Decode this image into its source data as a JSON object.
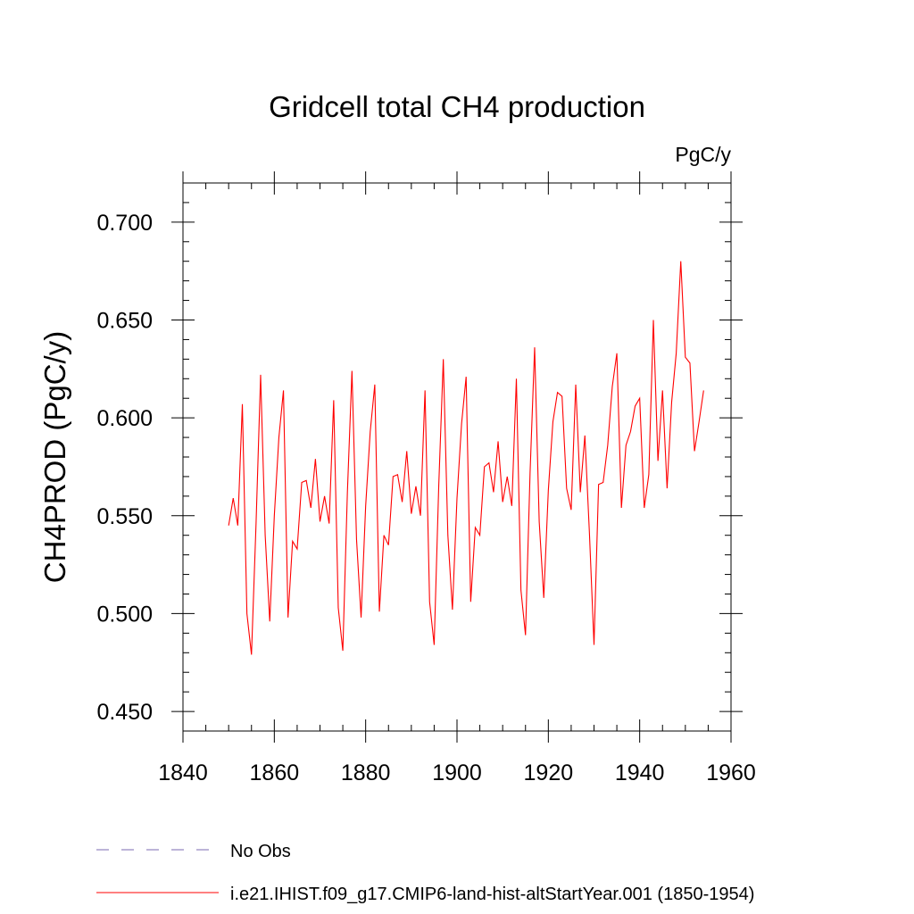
{
  "chart_data": {
    "type": "line",
    "title": "Gridcell total CH4 production",
    "units_label": "PgC/y",
    "ylabel": "CH4PROD  (PgC/y)",
    "xlabel": "",
    "xlim": [
      1840,
      1960
    ],
    "ylim": [
      0.44,
      0.72
    ],
    "x_ticks": [
      1840,
      1860,
      1880,
      1900,
      1920,
      1940,
      1960
    ],
    "x_tick_labels": [
      "1840",
      "1860",
      "1880",
      "1900",
      "1920",
      "1940",
      "1960"
    ],
    "y_ticks": [
      0.45,
      0.5,
      0.55,
      0.6,
      0.65,
      0.7
    ],
    "y_tick_labels": [
      "0.450",
      "0.500",
      "0.550",
      "0.600",
      "0.650",
      "0.700"
    ],
    "grid": false,
    "legend_position": "bottom-left",
    "series": [
      {
        "name": "i.e21.IHIST.f09_g17.CMIP6-land-hist-altStartYear.001 (1850-1954)",
        "color": "#ff0000",
        "x": [
          1850,
          1851,
          1852,
          1853,
          1854,
          1855,
          1856,
          1857,
          1858,
          1859,
          1860,
          1861,
          1862,
          1863,
          1864,
          1865,
          1866,
          1867,
          1868,
          1869,
          1870,
          1871,
          1872,
          1873,
          1874,
          1875,
          1876,
          1877,
          1878,
          1879,
          1880,
          1881,
          1882,
          1883,
          1884,
          1885,
          1886,
          1887,
          1888,
          1889,
          1890,
          1891,
          1892,
          1893,
          1894,
          1895,
          1896,
          1897,
          1898,
          1899,
          1900,
          1901,
          1902,
          1903,
          1904,
          1905,
          1906,
          1907,
          1908,
          1909,
          1910,
          1911,
          1912,
          1913,
          1914,
          1915,
          1916,
          1917,
          1918,
          1919,
          1920,
          1921,
          1922,
          1923,
          1924,
          1925,
          1926,
          1927,
          1928,
          1929,
          1930,
          1931,
          1932,
          1933,
          1934,
          1935,
          1936,
          1937,
          1938,
          1939,
          1940,
          1941,
          1942,
          1943,
          1944,
          1945,
          1946,
          1947,
          1948,
          1949,
          1950,
          1951,
          1952,
          1953,
          1954
        ],
        "y": [
          0.545,
          0.559,
          0.545,
          0.607,
          0.5,
          0.479,
          0.546,
          0.622,
          0.54,
          0.496,
          0.55,
          0.59,
          0.614,
          0.498,
          0.537,
          0.533,
          0.567,
          0.568,
          0.554,
          0.579,
          0.547,
          0.56,
          0.546,
          0.609,
          0.503,
          0.481,
          0.562,
          0.624,
          0.538,
          0.498,
          0.555,
          0.593,
          0.617,
          0.501,
          0.54,
          0.535,
          0.57,
          0.571,
          0.557,
          0.583,
          0.551,
          0.565,
          0.55,
          0.614,
          0.506,
          0.484,
          0.565,
          0.63,
          0.54,
          0.502,
          0.559,
          0.597,
          0.621,
          0.506,
          0.544,
          0.54,
          0.575,
          0.577,
          0.562,
          0.588,
          0.557,
          0.57,
          0.555,
          0.62,
          0.512,
          0.489,
          0.572,
          0.636,
          0.547,
          0.508,
          0.563,
          0.598,
          0.613,
          0.611,
          0.564,
          0.553,
          0.617,
          0.562,
          0.591,
          0.541,
          0.484,
          0.566,
          0.567,
          0.586,
          0.616,
          0.633,
          0.554,
          0.586,
          0.593,
          0.606,
          0.61,
          0.554,
          0.571,
          0.65,
          0.578,
          0.614,
          0.564,
          0.608,
          0.633,
          0.68,
          0.631,
          0.628,
          0.583,
          0.598,
          0.614
        ]
      },
      {
        "name": "No Obs",
        "color": "#7b68b0",
        "dashed": true,
        "x": [],
        "y": []
      }
    ]
  }
}
